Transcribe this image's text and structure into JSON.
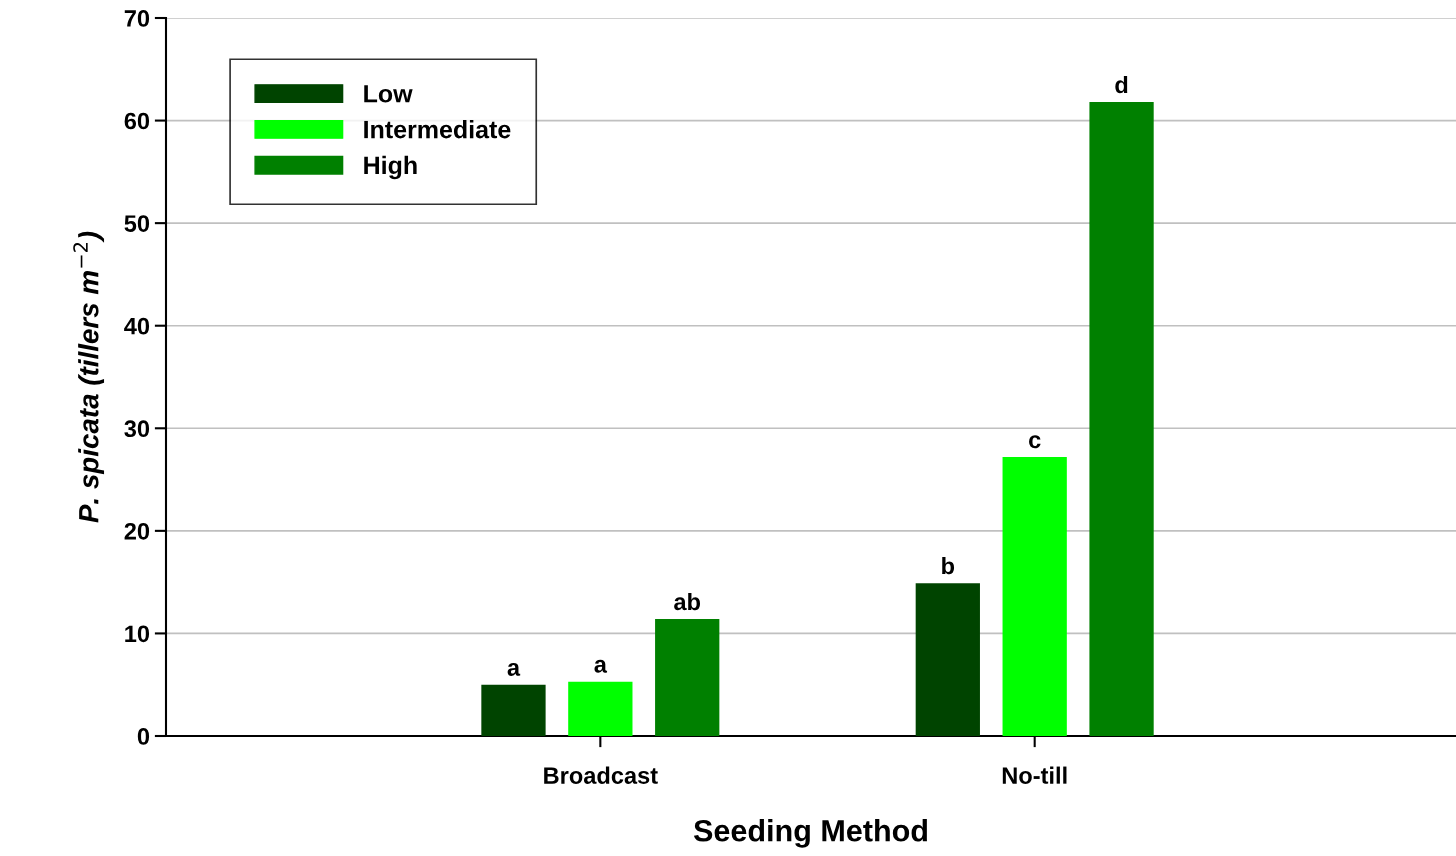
{
  "chart_data": {
    "type": "bar",
    "xlabel": "Seeding Method",
    "ylabel": "P. spicata (tillers m$^{−2}$)",
    "categories": [
      "Broadcast",
      "No-till"
    ],
    "series": [
      {
        "name": "Low",
        "color": "#004400",
        "values": [
          5.0,
          14.9
        ],
        "value_labels": [
          "a",
          "b"
        ]
      },
      {
        "name": "Intermediate",
        "color": "#00ff00",
        "values": [
          5.3,
          27.2
        ],
        "value_labels": [
          "a",
          "c"
        ]
      },
      {
        "name": "High",
        "color": "#008000",
        "values": [
          11.4,
          61.8
        ],
        "value_labels": [
          "ab",
          "d"
        ]
      }
    ],
    "ylim": [
      0,
      70
    ],
    "yticks": [
      0,
      10,
      20,
      30,
      40,
      50,
      60,
      70
    ],
    "grid": "y",
    "legend": "top left"
  }
}
